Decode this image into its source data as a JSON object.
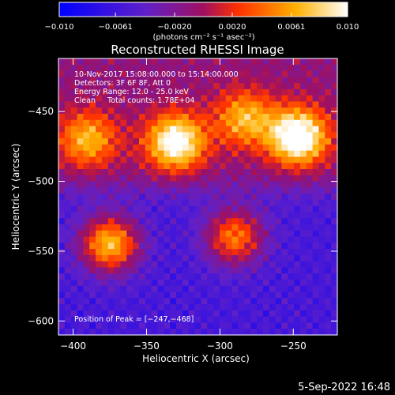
{
  "chart_data": {
    "type": "heatmap",
    "title": "Reconstructed RHESSI Image",
    "xlabel": "Heliocentric X (arcsec)",
    "ylabel": "Heliocentric Y (arcsec)",
    "xlim": [
      -410,
      -220
    ],
    "ylim": [
      -610,
      -412
    ],
    "xticks": [
      -400,
      -350,
      -300,
      -250
    ],
    "xtick_labels": [
      "−400",
      "−350",
      "−300",
      "−250"
    ],
    "yticks": [
      -450,
      -500,
      -550,
      -600
    ],
    "ytick_labels": [
      "−450",
      "−500",
      "−550",
      "−600"
    ],
    "colorbar": {
      "range": [
        -0.01,
        0.01
      ],
      "ticks": [
        -0.01,
        -0.0061,
        -0.002,
        0.002,
        0.0061,
        0.01
      ],
      "tick_labels": [
        "−0.010",
        "−0.0061",
        "−0.0020",
        "0.0020",
        "0.0061",
        "0.010"
      ],
      "unit_label": "(photons cm⁻² s⁻¹ asec⁻²)",
      "colors": [
        "#0000ff",
        "#7020c0",
        "#a01060",
        "#ff3000",
        "#ffb000",
        "#ffffff"
      ]
    },
    "annotations": [
      "10-Nov-2017 15:08:00.000 to 15:14:00.000",
      "Detectors: 3F 6F 8F, Att 0",
      "Energy Range: 12.0 - 25.0 keV",
      "Clean     Total counts: 1.78E+04"
    ],
    "peak_label": "Position of Peak = [−247,−468]",
    "peak": [
      -247,
      -468
    ],
    "sources": [
      {
        "x": -247,
        "y": -468,
        "peak": 0.01
      },
      {
        "x": -330,
        "y": -472,
        "peak": 0.0085
      },
      {
        "x": -375,
        "y": -545,
        "peak": 0.0085
      },
      {
        "x": -290,
        "y": -540,
        "peak": 0.006
      },
      {
        "x": -283,
        "y": -455,
        "peak": 0.004
      },
      {
        "x": -390,
        "y": -470,
        "peak": 0.004
      }
    ]
  },
  "footer": {
    "date": "5-Sep-2022 16:48"
  }
}
